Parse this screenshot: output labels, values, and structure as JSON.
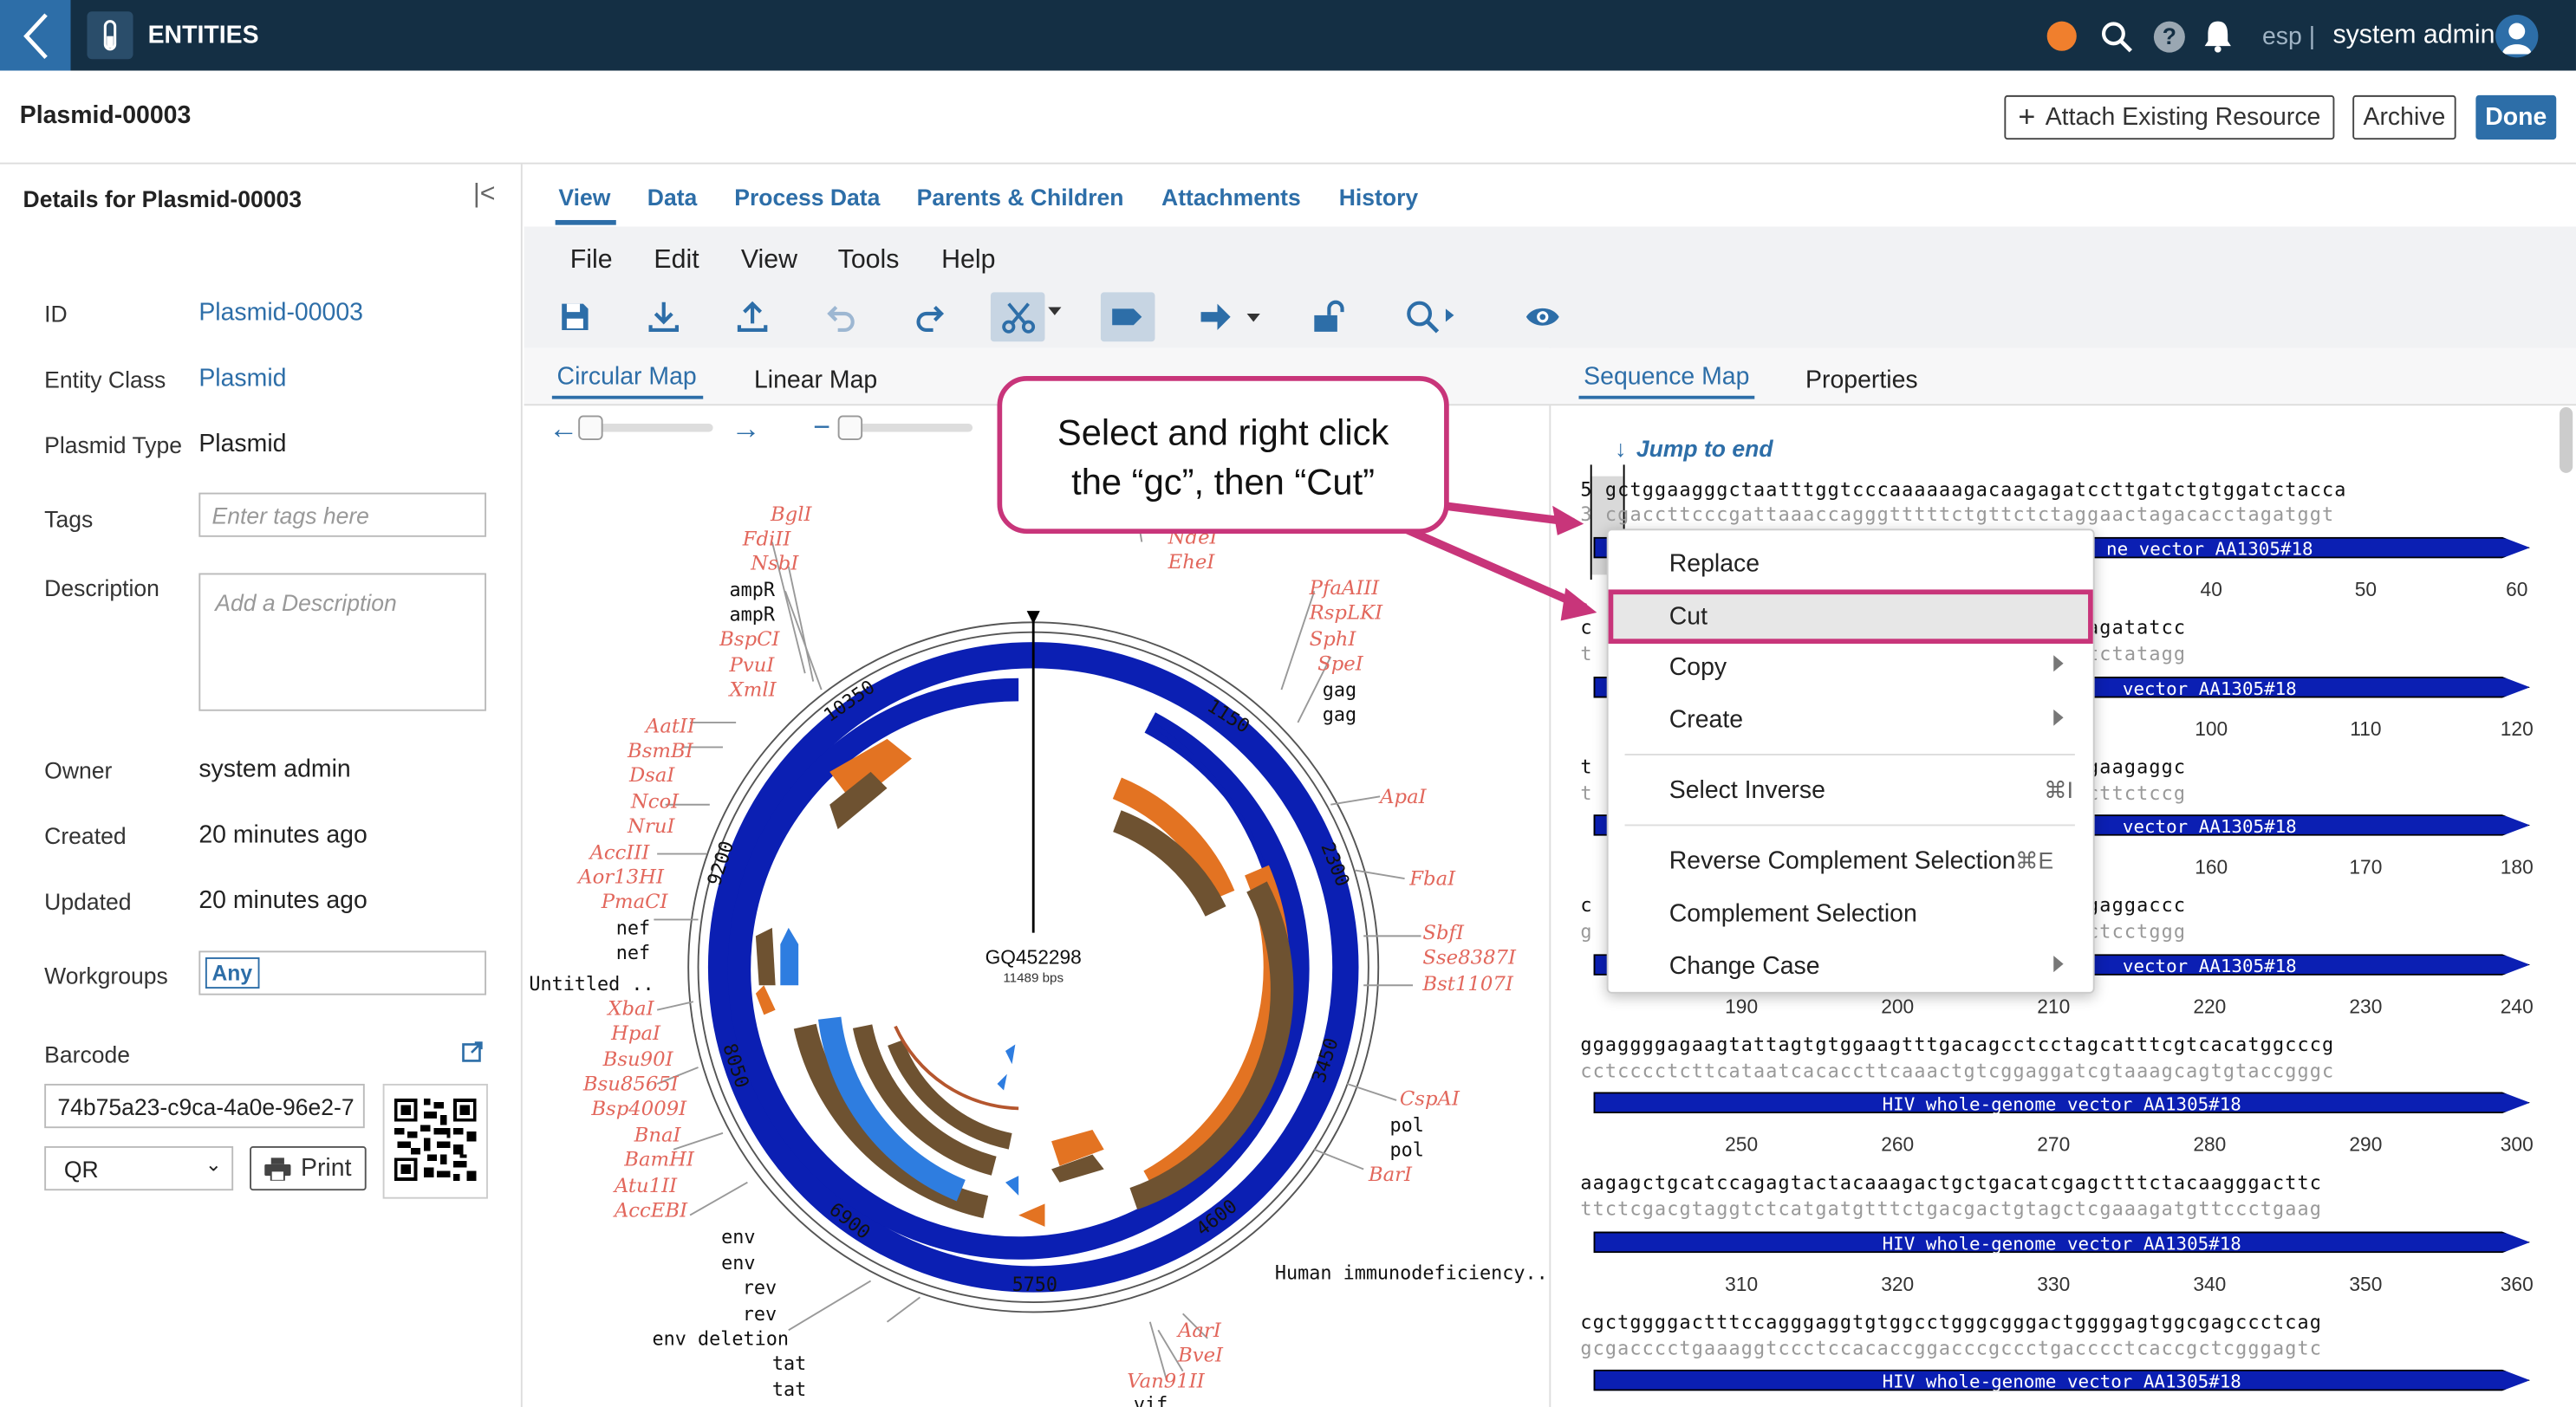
{
  "header": {
    "section": "ENTITIES",
    "user_initials": "esp |",
    "user_name": "system admin"
  },
  "title": "Plasmid-00003",
  "actions": {
    "attach": "Attach Existing Resource",
    "archive": "Archive",
    "done": "Done"
  },
  "details": {
    "heading": "Details for Plasmid-00003",
    "id_label": "ID",
    "id_value": "Plasmid-00003",
    "class_label": "Entity Class",
    "class_value": "Plasmid",
    "type_label": "Plasmid Type",
    "type_value": "Plasmid",
    "tags_label": "Tags",
    "tags_placeholder": "Enter tags here",
    "desc_label": "Description",
    "desc_placeholder": "Add a Description",
    "owner_label": "Owner",
    "owner_value": "system admin",
    "created_label": "Created",
    "created_value": "20 minutes ago",
    "updated_label": "Updated",
    "updated_value": "20 minutes ago",
    "wg_label": "Workgroups",
    "wg_value": "Any",
    "barcode_label": "Barcode",
    "barcode_value": "74b75a23-c9ca-4a0e-96e2-7",
    "barcode_type": "QR",
    "print_label": "Print"
  },
  "tabs": [
    "View",
    "Data",
    "Process Data",
    "Parents & Children",
    "Attachments",
    "History"
  ],
  "menus": [
    "File",
    "Edit",
    "View",
    "Tools",
    "Help"
  ],
  "map_tabs": {
    "circular": "Circular Map",
    "linear": "Linear Map",
    "sequence": "Sequence Map",
    "properties": "Properties"
  },
  "callout": {
    "line1": "Select and right click",
    "line2": "the “gc”, then “Cut”"
  },
  "plasmid": {
    "name": "GQ452298",
    "size": "11489 bps"
  },
  "ticks": [
    "10350",
    "1150",
    "2300",
    "3450",
    "4600",
    "5750",
    "6900",
    "8050",
    "9200"
  ],
  "enzymes_left": [
    "BglI",
    "FdiII",
    "NsbI",
    "BspCI",
    "PvuI",
    "XmlI",
    "AatII",
    "BsmBI",
    "DsaI",
    "NcoI",
    "NruI",
    "AccIII",
    "Aor13HI",
    "PmaCI",
    "XbaI",
    "HpaI",
    "Bsu90I",
    "Bsu8565I",
    "Bsp4009I",
    "BnaI",
    "BamHI",
    "Atu1II",
    "AccEBI"
  ],
  "enzymes_right": [
    "NdeI",
    "EheI",
    "PfaAIII",
    "RspLKI",
    "SphI",
    "SpeI",
    "ApaI",
    "FbaI",
    "SbfI",
    "Sse8387I",
    "Bst1107I",
    "CspAI",
    "BarI",
    "AarI",
    "BveI",
    "Van91II"
  ],
  "features_left": [
    "ampR",
    "ampR",
    "nef",
    "nef",
    "Untitled ..",
    "env",
    "env",
    "rev",
    "rev",
    "env deletion",
    "tat",
    "tat"
  ],
  "features_right": [
    "gag",
    "gag",
    "pol",
    "pol",
    "Human immunodeficiency..",
    "vif"
  ],
  "jump": "Jump to end",
  "context_menu": {
    "items": [
      "Replace",
      "Cut",
      "Copy",
      "Create",
      "Select Inverse",
      "Reverse Complement Selection",
      "Complement Selection",
      "Change Case"
    ],
    "shortcut_select_inverse": "⌘I",
    "shortcut_rev_comp": "⌘E"
  },
  "sequence": {
    "feature": "HIV whole-genome vector AA1305#18",
    "feature_short": "vector AA1305#18",
    "feature_short0": "ne vector AA1305#18",
    "r1_top": "gctggaagggctaatttggtcccaaaaaagacaagagatccttgatctgtggatctacca",
    "r1_bot": "cgaccttcccgattaaaccagggtttttctgttctctaggaactagacacctagatggt",
    "r2_top": "acacaccagggccagggatcagatatcc",
    "r2_bot": "tgtgtggtcccggtccctagtctatagg",
    "r3_top": "cagttgaaccagagcaagtagaagaggc",
    "r3_bot": "gtcaacttggtctcgttcatcttctccg",
    "r4_top": "ctatgagccagcatgggatggaggaccc",
    "r4_bot": "gatactcggtcgtaccctacctcctggg",
    "r5_top": "ggaggggagaagtattagtgtggaagtttgacagcctcctagcatttcgtcacatggcccg",
    "r5_bot": "cctcccctcttcataatcacaccttcaaactgtcggaggatcgtaaagcagtgtaccgggc",
    "r6_top": "agagctgcatccagagtactacaaagactgctgacatcgagctttctacaagggacttc",
    "r6_bot": "tctcgacgtaggtctcatgatgtttctgacgactgtagctcgaaagatgttccctgaag",
    "r7_top": "cgctggggactttccagggaggtgtggcctgggcgggactggggagtggcgagccctcag",
    "r7_bot": "gcgacccctgaaaggtccctccacaccggacccgccctgacccctcaccgctcgggagtc",
    "n1": [
      "40",
      "50",
      "60"
    ],
    "n2": [
      "100",
      "110",
      "120"
    ],
    "n3": [
      "160",
      "170",
      "180"
    ],
    "n4": [
      "190",
      "200",
      "210",
      "220",
      "230",
      "240"
    ],
    "n5": [
      "250",
      "260",
      "270",
      "280",
      "290",
      "300"
    ],
    "n6": [
      "310",
      "320",
      "330",
      "340",
      "350",
      "360"
    ]
  }
}
